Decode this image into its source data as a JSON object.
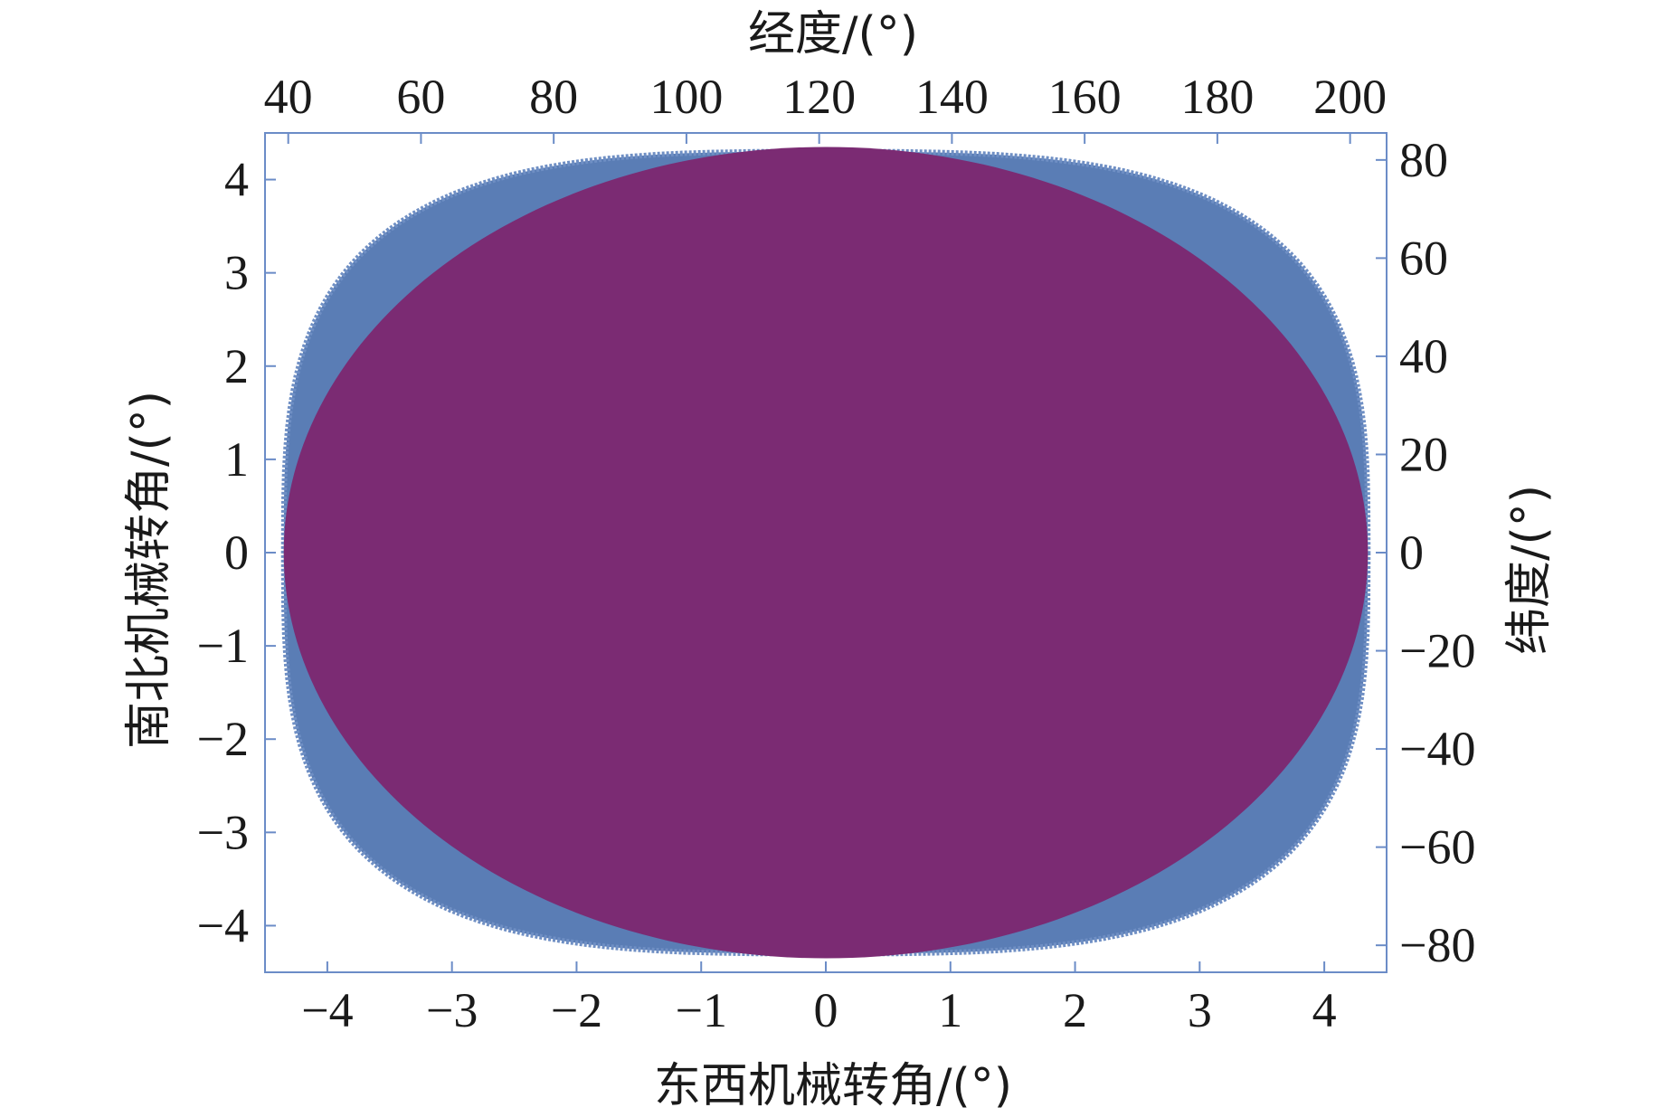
{
  "chart_data": {
    "type": "scatter",
    "xlabel": "东西机械转角/(°)",
    "ylabel": "南北机械转角/(°)",
    "x2label": "经度/(°)",
    "y2label": "纬度/(°)",
    "xlim": [
      -4.5,
      4.5
    ],
    "ylim": [
      -4.5,
      4.5
    ],
    "x2lim": [
      36.5,
      205.5
    ],
    "y2lim": [
      -85.5,
      85.5
    ],
    "xticks": [
      -4,
      -3,
      -2,
      -1,
      0,
      1,
      2,
      3,
      4
    ],
    "yticks": [
      -4,
      -3,
      -2,
      -1,
      0,
      1,
      2,
      3,
      4
    ],
    "x2ticks": [
      40,
      60,
      80,
      100,
      120,
      140,
      160,
      180,
      200
    ],
    "y2ticks": [
      -80,
      -60,
      -40,
      -20,
      0,
      20,
      40,
      60,
      80
    ],
    "grid": false,
    "legend": "none",
    "series": [
      {
        "color": "#5a7db5",
        "marker": "dense circles",
        "region_shape": "rounded square",
        "x_extent": [
          -4.35,
          4.35
        ],
        "y_extent": [
          -4.3,
          4.3
        ]
      },
      {
        "color": "#7b2b73",
        "marker": "filled",
        "region_shape": "ellipse",
        "center": [
          0,
          0
        ],
        "x_extent": [
          -4.35,
          4.35
        ],
        "y_extent": [
          -4.35,
          4.35
        ]
      }
    ]
  }
}
